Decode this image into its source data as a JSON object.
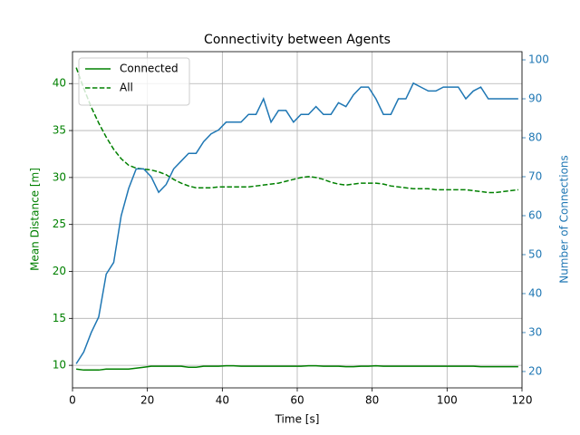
{
  "chart_data": {
    "type": "line",
    "title": "Connectivity between Agents",
    "xlabel": "Time [s]",
    "ylabel": "Mean Distance [m]",
    "y2label": "Number of Connections",
    "ylabel_color": "green",
    "y2label_color": "#1f77b4",
    "x": [
      1,
      3,
      5,
      7,
      9,
      11,
      13,
      15,
      17,
      19,
      21,
      23,
      25,
      27,
      29,
      31,
      33,
      35,
      37,
      39,
      41,
      43,
      45,
      47,
      49,
      51,
      53,
      55,
      57,
      59,
      61,
      63,
      65,
      67,
      69,
      71,
      73,
      75,
      77,
      79,
      81,
      83,
      85,
      87,
      89,
      91,
      93,
      95,
      97,
      99,
      101,
      103,
      105,
      107,
      109,
      111,
      113,
      115,
      117,
      119
    ],
    "series": [
      {
        "name": "Connected",
        "color": "green",
        "dash": false,
        "values": [
          9.6,
          9.5,
          9.5,
          9.5,
          9.6,
          9.6,
          9.6,
          9.6,
          9.7,
          9.8,
          9.9,
          9.9,
          9.9,
          9.9,
          9.9,
          9.8,
          9.8,
          9.9,
          9.9,
          9.9,
          9.95,
          9.95,
          9.9,
          9.9,
          9.9,
          9.9,
          9.9,
          9.9,
          9.9,
          9.9,
          9.9,
          9.95,
          9.95,
          9.9,
          9.9,
          9.9,
          9.85,
          9.85,
          9.9,
          9.9,
          9.95,
          9.9,
          9.9,
          9.9,
          9.9,
          9.9,
          9.9,
          9.9,
          9.9,
          9.9,
          9.9,
          9.9,
          9.9,
          9.9,
          9.85,
          9.85,
          9.85,
          9.85,
          9.85,
          9.85
        ]
      },
      {
        "name": "All",
        "color": "green",
        "dash": true,
        "values": [
          41.7,
          39.5,
          37.5,
          35.8,
          34.3,
          33.0,
          32.0,
          31.3,
          31.0,
          30.9,
          30.8,
          30.6,
          30.3,
          29.8,
          29.4,
          29.1,
          28.9,
          28.9,
          28.9,
          29.0,
          29.0,
          29.0,
          29.0,
          29.0,
          29.1,
          29.2,
          29.3,
          29.4,
          29.6,
          29.8,
          30.0,
          30.1,
          30.0,
          29.8,
          29.5,
          29.3,
          29.2,
          29.3,
          29.4,
          29.4,
          29.4,
          29.3,
          29.1,
          29.0,
          28.9,
          28.8,
          28.8,
          28.8,
          28.7,
          28.7,
          28.7,
          28.7,
          28.7,
          28.6,
          28.5,
          28.4,
          28.4,
          28.5,
          28.6,
          28.7
        ]
      },
      {
        "name": "Connections",
        "color": "#1f77b4",
        "axis": "y2",
        "legend": false,
        "values": [
          22,
          25,
          30,
          34,
          45,
          48,
          60,
          67,
          72,
          72,
          70,
          66,
          68,
          72,
          74,
          76,
          76,
          79,
          81,
          82,
          84,
          84,
          84,
          86,
          86,
          90,
          84,
          87,
          87,
          84,
          86,
          86,
          88,
          86,
          86,
          89,
          88,
          91,
          93,
          93,
          90,
          86,
          86,
          90,
          90,
          94,
          93,
          92,
          92,
          93,
          93,
          93,
          90,
          92,
          93,
          90,
          90,
          90,
          90,
          90
        ]
      }
    ],
    "xlim": [
      0,
      120
    ],
    "xticks": [
      0,
      20,
      40,
      60,
      80,
      100,
      120
    ],
    "ylim": [
      7.6,
      43.4
    ],
    "yticks": [
      10,
      15,
      20,
      25,
      30,
      35,
      40
    ],
    "y2lim": [
      15.8,
      102.1
    ],
    "y2ticks": [
      20,
      30,
      40,
      50,
      60,
      70,
      80,
      90,
      100
    ],
    "grid": true,
    "legend_loc": "upper left"
  }
}
